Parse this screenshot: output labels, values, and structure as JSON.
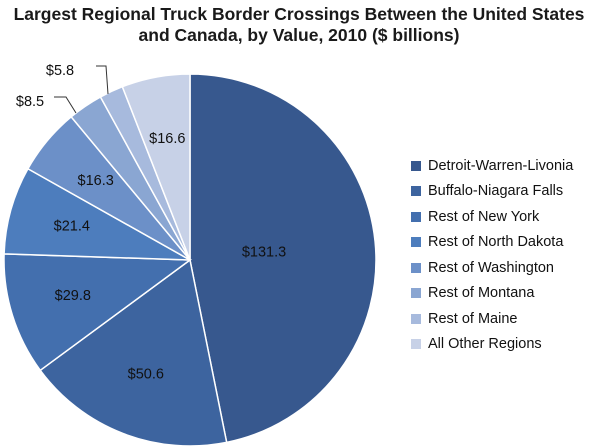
{
  "chart_data": {
    "type": "pie",
    "title": "Largest Regional Truck Border Crossings Between the United States and Canada, by Value, 2010 ($ billions)",
    "legend_position": "right",
    "label_prefix": "$",
    "slices": [
      {
        "name": "Detroit-Warren-Livonia",
        "value": 131.3,
        "color": "#37588e"
      },
      {
        "name": "Buffalo-Niagara Falls",
        "value": 50.6,
        "color": "#3d649f"
      },
      {
        "name": "Rest of New York",
        "value": 29.8,
        "color": "#436fae"
      },
      {
        "name": "Rest of North Dakota",
        "value": 21.4,
        "color": "#4d7dbd"
      },
      {
        "name": "Rest of Washington",
        "value": 16.3,
        "color": "#6c90c8"
      },
      {
        "name": "Rest of Montana",
        "value": 8.5,
        "color": "#8aa6d2"
      },
      {
        "name": "Rest of Maine",
        "value": 5.8,
        "color": "#a7badd"
      },
      {
        "name": "All Other Regions",
        "value": 16.6,
        "color": "#c7d1e7"
      }
    ]
  }
}
